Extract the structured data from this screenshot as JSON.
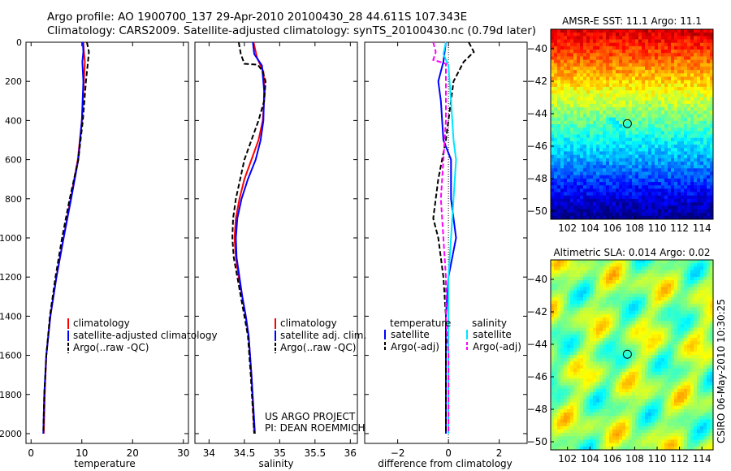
{
  "header": {
    "line1": "Argo profile: AO 1900700_137 29-Apr-2010 20100430_28 44.611S 107.343E",
    "line2": "Climatology: CARS2009. Satellite-adjusted climatology: synTS_20100430.nc (0.79d later)"
  },
  "colors": {
    "climatology": "#ff0000",
    "satellite": "#0000ff",
    "argo": "#000000",
    "salinity_sat": "#00e5ff",
    "salinity_argo": "#ff00ff"
  },
  "chart_data": [
    {
      "type": "line",
      "xlabel": "temperature",
      "xlim": [
        -1,
        31
      ],
      "ylim": [
        0,
        2050
      ],
      "y_inverted": true,
      "xticks": [
        0,
        10,
        20,
        30
      ],
      "yticks": [
        0,
        200,
        400,
        600,
        800,
        1000,
        1200,
        1400,
        1600,
        1800,
        2000
      ],
      "legend": [
        "climatology",
        "satellite-adjusted climatology",
        "Argo(..raw -QC)"
      ],
      "series": [
        {
          "name": "climatology",
          "style": "solid",
          "color": "#ff0000",
          "points": [
            [
              10.3,
              0
            ],
            [
              10.4,
              50
            ],
            [
              10.6,
              100
            ],
            [
              10.4,
              200
            ],
            [
              10.0,
              400
            ],
            [
              9.2,
              600
            ],
            [
              7.8,
              800
            ],
            [
              6.4,
              1000
            ],
            [
              5.0,
              1200
            ],
            [
              3.8,
              1400
            ],
            [
              3.0,
              1600
            ],
            [
              2.7,
              1800
            ],
            [
              2.5,
              2000
            ]
          ]
        },
        {
          "name": "satellite-adjusted climatology",
          "style": "solid",
          "color": "#0000ff",
          "points": [
            [
              10.2,
              0
            ],
            [
              10.3,
              50
            ],
            [
              10.1,
              100
            ],
            [
              10.3,
              200
            ],
            [
              10.0,
              400
            ],
            [
              9.3,
              600
            ],
            [
              7.9,
              800
            ],
            [
              6.4,
              1000
            ],
            [
              5.0,
              1200
            ],
            [
              3.8,
              1400
            ],
            [
              3.0,
              1600
            ],
            [
              2.6,
              1800
            ],
            [
              2.4,
              2000
            ]
          ]
        },
        {
          "name": "Argo(..raw -QC)",
          "style": "dashed",
          "color": "#000000",
          "points": [
            [
              11.0,
              0
            ],
            [
              11.4,
              50
            ],
            [
              11.2,
              100
            ],
            [
              10.8,
              200
            ],
            [
              10.2,
              400
            ],
            [
              9.3,
              600
            ],
            [
              7.6,
              800
            ],
            [
              6.1,
              1000
            ],
            [
              4.8,
              1200
            ],
            [
              3.7,
              1400
            ],
            [
              3.0,
              1600
            ],
            [
              2.6,
              1800
            ],
            [
              2.4,
              2000
            ]
          ]
        }
      ]
    },
    {
      "type": "line",
      "xlabel": "salinity",
      "xlim": [
        33.8,
        36.1
      ],
      "ylim": [
        0,
        2050
      ],
      "y_inverted": true,
      "xticks": [
        34,
        34.5,
        35,
        35.5,
        36
      ],
      "legend": [
        "climatology",
        "satellite adj. clim.",
        "Argo(..raw -QC)"
      ],
      "annotation": [
        "US ARGO PROJECT",
        "PI: DEAN ROEMMICH"
      ],
      "series": [
        {
          "name": "climatology",
          "style": "solid",
          "color": "#ff0000",
          "points": [
            [
              34.63,
              0
            ],
            [
              34.68,
              80
            ],
            [
              34.77,
              150
            ],
            [
              34.79,
              250
            ],
            [
              34.76,
              400
            ],
            [
              34.7,
              500
            ],
            [
              34.6,
              600
            ],
            [
              34.5,
              700
            ],
            [
              34.43,
              800
            ],
            [
              34.38,
              900
            ],
            [
              34.36,
              1000
            ],
            [
              34.38,
              1100
            ],
            [
              34.42,
              1200
            ],
            [
              34.47,
              1300
            ],
            [
              34.52,
              1400
            ],
            [
              34.56,
              1500
            ],
            [
              34.6,
              1700
            ],
            [
              34.64,
              2000
            ]
          ]
        },
        {
          "name": "satellite adj. clim.",
          "style": "solid",
          "color": "#0000ff",
          "points": [
            [
              34.62,
              0
            ],
            [
              34.64,
              60
            ],
            [
              34.75,
              120
            ],
            [
              34.78,
              250
            ],
            [
              34.77,
              400
            ],
            [
              34.73,
              500
            ],
            [
              34.66,
              600
            ],
            [
              34.55,
              700
            ],
            [
              34.46,
              800
            ],
            [
              34.4,
              900
            ],
            [
              34.38,
              1000
            ],
            [
              34.39,
              1100
            ],
            [
              34.43,
              1200
            ],
            [
              34.47,
              1300
            ],
            [
              34.52,
              1400
            ],
            [
              34.56,
              1500
            ],
            [
              34.6,
              1700
            ],
            [
              34.65,
              2000
            ]
          ]
        },
        {
          "name": "Argo(..raw -QC)",
          "style": "dashed",
          "color": "#000000",
          "points": [
            [
              34.42,
              0
            ],
            [
              34.45,
              60
            ],
            [
              34.48,
              90
            ],
            [
              34.5,
              110
            ],
            [
              34.69,
              115
            ],
            [
              34.76,
              150
            ],
            [
              34.8,
              200
            ],
            [
              34.78,
              300
            ],
            [
              34.7,
              400
            ],
            [
              34.6,
              500
            ],
            [
              34.5,
              600
            ],
            [
              34.44,
              700
            ],
            [
              34.38,
              800
            ],
            [
              34.34,
              900
            ],
            [
              34.33,
              1000
            ],
            [
              34.35,
              1100
            ],
            [
              34.4,
              1200
            ],
            [
              34.45,
              1300
            ],
            [
              34.5,
              1400
            ],
            [
              34.55,
              1500
            ],
            [
              34.59,
              1700
            ],
            [
              34.64,
              2000
            ]
          ]
        }
      ]
    },
    {
      "type": "line",
      "xlabel": "difference from climatology",
      "xlim": [
        -3.3,
        3.1
      ],
      "ylim": [
        0,
        2050
      ],
      "y_inverted": true,
      "xticks": [
        -2,
        0,
        2
      ],
      "legend_groups": [
        {
          "title": "temperature",
          "items": [
            "satellite",
            "Argo(-adj)"
          ]
        },
        {
          "title": "salinity",
          "items": [
            "satellite",
            "Argo(-adj)"
          ]
        }
      ],
      "series": [
        {
          "name": "temperature satellite",
          "style": "solid",
          "color": "#0000ff",
          "points": [
            [
              -0.1,
              0
            ],
            [
              -0.2,
              100
            ],
            [
              -0.4,
              200
            ],
            [
              -0.3,
              300
            ],
            [
              -0.2,
              500
            ],
            [
              0.1,
              600
            ],
            [
              0.1,
              800
            ],
            [
              0.3,
              1000
            ],
            [
              0.0,
              1200
            ],
            [
              -0.1,
              1400
            ],
            [
              -0.1,
              1600
            ],
            [
              -0.1,
              1800
            ],
            [
              -0.1,
              2000
            ]
          ]
        },
        {
          "name": "temperature Argo(-adj)",
          "style": "dashed",
          "color": "#000000",
          "points": [
            [
              0.8,
              0
            ],
            [
              1.0,
              50
            ],
            [
              0.6,
              100
            ],
            [
              0.2,
              200
            ],
            [
              0.0,
              400
            ],
            [
              -0.1,
              500
            ],
            [
              -0.4,
              700
            ],
            [
              -0.5,
              800
            ],
            [
              -0.6,
              900
            ],
            [
              -0.4,
              1000
            ],
            [
              -0.2,
              1200
            ],
            [
              -0.1,
              1400
            ],
            [
              -0.1,
              1600
            ],
            [
              -0.1,
              1800
            ],
            [
              -0.1,
              2000
            ]
          ]
        },
        {
          "name": "salinity satellite",
          "style": "solid",
          "color": "#00e5ff",
          "points": [
            [
              -0.1,
              0
            ],
            [
              -0.2,
              60
            ],
            [
              0.0,
              120
            ],
            [
              0.1,
              300
            ],
            [
              0.2,
              500
            ],
            [
              0.3,
              600
            ],
            [
              0.2,
              800
            ],
            [
              0.1,
              1000
            ],
            [
              0.0,
              1200
            ],
            [
              0.0,
              1600
            ],
            [
              0.0,
              2000
            ]
          ]
        },
        {
          "name": "salinity Argo(-adj)",
          "style": "dashed",
          "color": "#ff00ff",
          "points": [
            [
              -0.6,
              0
            ],
            [
              -0.5,
              50
            ],
            [
              -0.6,
              90
            ],
            [
              -0.1,
              110
            ],
            [
              -0.1,
              200
            ],
            [
              -0.1,
              400
            ],
            [
              -0.2,
              600
            ],
            [
              -0.3,
              800
            ],
            [
              -0.2,
              1000
            ],
            [
              -0.1,
              1200
            ],
            [
              -0.1,
              1400
            ],
            [
              0.0,
              1600
            ],
            [
              0.0,
              2000
            ]
          ]
        }
      ]
    },
    {
      "type": "heatmap",
      "title": "AMSR-E SST: 11.1 Argo: 11.1",
      "xlim": [
        100.5,
        115
      ],
      "ylim": [
        -50.5,
        -38.8
      ],
      "xticks": [
        102,
        104,
        106,
        108,
        110,
        112,
        114
      ],
      "yticks": [
        -40,
        -42,
        -44,
        -46,
        -48,
        -50
      ],
      "colormap": "jet",
      "marker": [
        107.343,
        -44.611
      ]
    },
    {
      "type": "heatmap",
      "title": "Altimetric SLA: 0.014 Argo: 0.02",
      "xlim": [
        100.5,
        115
      ],
      "ylim": [
        -50.5,
        -38.8
      ],
      "xticks": [
        102,
        104,
        106,
        108,
        110,
        112,
        114
      ],
      "yticks": [
        -40,
        -42,
        -44,
        -46,
        -48,
        -50
      ],
      "colormap": "jet",
      "marker": [
        107.343,
        -44.611
      ]
    }
  ],
  "side_stamp": "CSIRO 06-May-2010 10:30:25"
}
